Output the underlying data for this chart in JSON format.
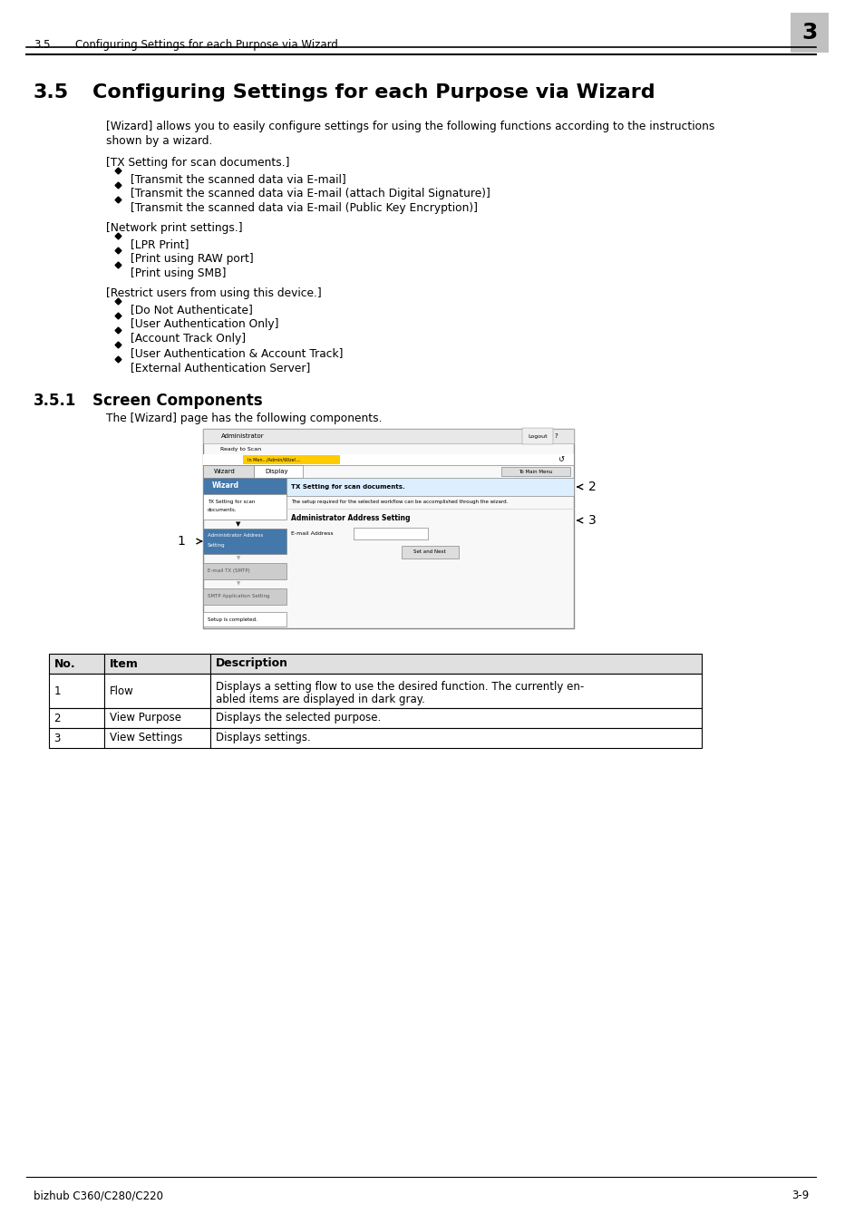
{
  "header_section_number": "3.5",
  "header_title": "Configuring Settings for each Purpose via Wizard",
  "chapter_number": "3",
  "section_title": "3.5",
  "section_heading": "Configuring Settings for each Purpose via Wizard",
  "intro_line1": "[Wizard] allows you to easily configure settings for using the following functions according to the instructions",
  "intro_line2": "shown by a wizard.",
  "group1_header": "[TX Setting for scan documents.]",
  "group1_items": [
    "[Transmit the scanned data via E-mail]",
    "[Transmit the scanned data via E-mail (attach Digital Signature)]",
    "[Transmit the scanned data via E-mail (Public Key Encryption)]"
  ],
  "group2_header": "[Network print settings.]",
  "group2_items": [
    "[LPR Print]",
    "[Print using RAW port]",
    "[Print using SMB]"
  ],
  "group3_header": "[Restrict users from using this device.]",
  "group3_items": [
    "[Do Not Authenticate]",
    "[User Authentication Only]",
    "[Account Track Only]",
    "[User Authentication & Account Track]",
    "[External Authentication Server]"
  ],
  "subsection_number": "3.5.1",
  "subsection_title": "Screen Components",
  "subsection_intro": "The [Wizard] page has the following components.",
  "table_headers": [
    "No.",
    "Item",
    "Description"
  ],
  "table_rows": [
    [
      "1",
      "Flow",
      "Displays a setting flow to use the desired function. The currently en-\nabled items are displayed in dark gray."
    ],
    [
      "2",
      "View Purpose",
      "Displays the selected purpose."
    ],
    [
      "3",
      "View Settings",
      "Displays settings."
    ]
  ],
  "footer_left": "bizhub C360/C280/C220",
  "footer_right": "3-9",
  "bg_color": "#ffffff",
  "text_color": "#000000",
  "chapter_box_color": "#c0c0c0",
  "table_border_color": "#000000"
}
